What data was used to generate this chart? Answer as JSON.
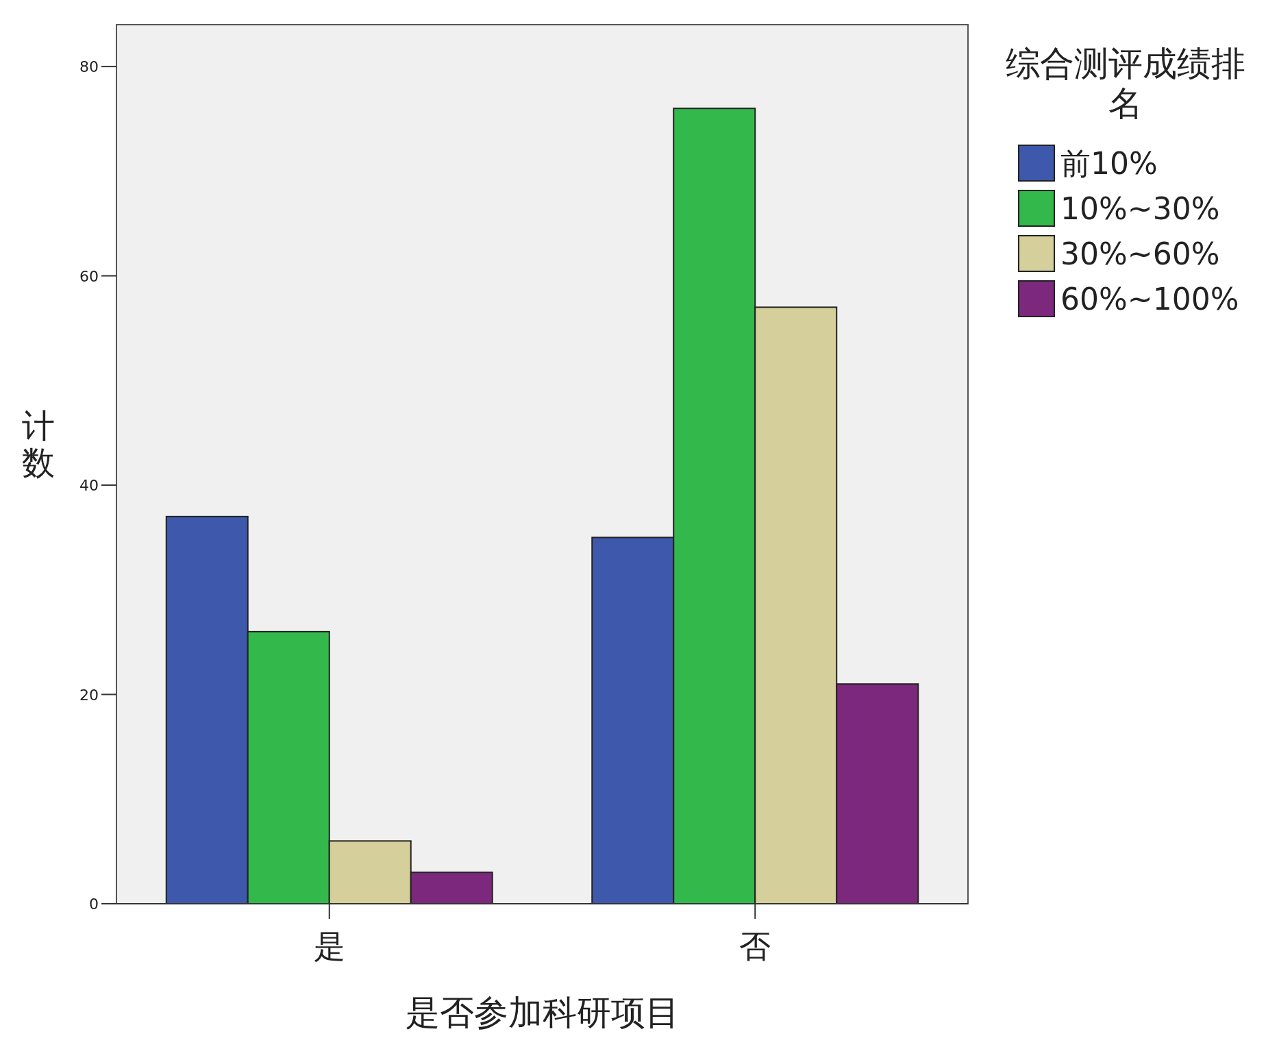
{
  "chart_data": {
    "type": "bar",
    "xlabel": "是否参加科研项目",
    "ylabel": "计数",
    "legend_title": "综合测评成绩排名",
    "categories": [
      "是",
      "否"
    ],
    "series": [
      {
        "name": "前10%",
        "color": "#3e58ac",
        "values": [
          37,
          35
        ]
      },
      {
        "name": "10%~30%",
        "color": "#33b84b",
        "values": [
          26,
          76
        ]
      },
      {
        "name": "30%~60%",
        "color": "#d5d09b",
        "values": [
          6,
          57
        ]
      },
      {
        "name": "60%~100%",
        "color": "#7c287c",
        "values": [
          3,
          21
        ]
      }
    ],
    "ylim": [
      0,
      84
    ],
    "yticks": [
      0,
      20,
      40,
      60,
      80
    ],
    "grid": false,
    "legend": "top right"
  }
}
